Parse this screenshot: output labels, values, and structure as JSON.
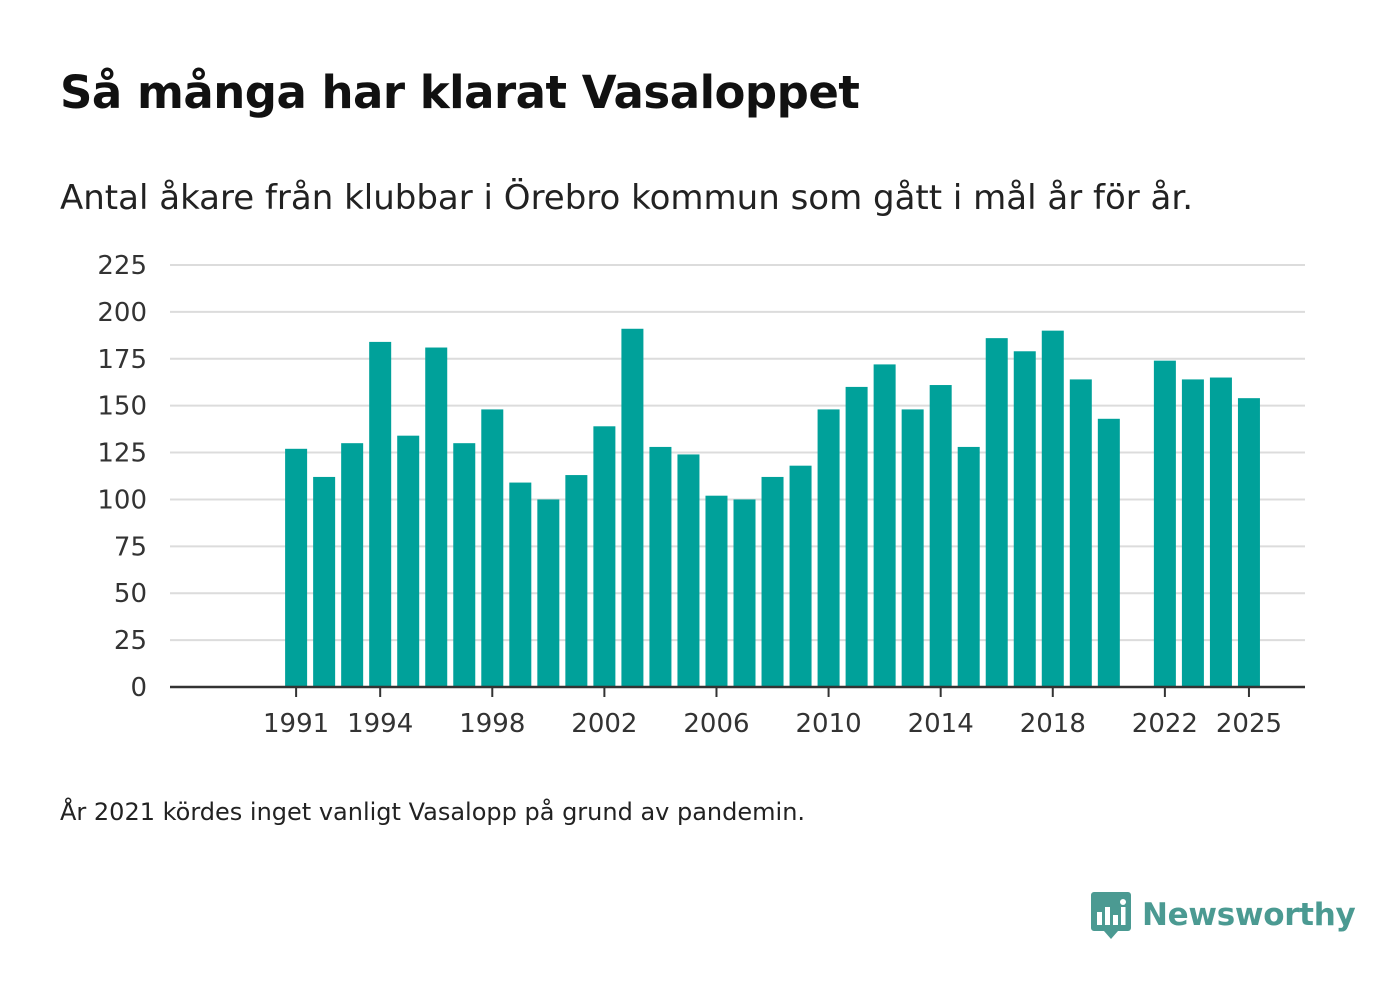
{
  "header": {
    "title": "Så många har klarat Vasaloppet",
    "subtitle": "Antal åkare från klubbar i Örebro kommun som gått i mål år för år."
  },
  "footer": {
    "note": "År 2021 kördes inget vanligt Vasalopp på grund av pandemin.",
    "brand": "Newsworthy"
  },
  "colors": {
    "bar": "#00a19a",
    "grid": "#dcdcdc",
    "axis": "#333333",
    "brand": "#4b9a92"
  },
  "chart_data": {
    "type": "bar",
    "title": "Så många har klarat Vasaloppet",
    "xlabel": "",
    "ylabel": "",
    "categories": [
      1991,
      1992,
      1993,
      1994,
      1995,
      1996,
      1997,
      1998,
      1999,
      2000,
      2001,
      2002,
      2003,
      2004,
      2005,
      2006,
      2007,
      2008,
      2009,
      2010,
      2011,
      2012,
      2013,
      2014,
      2015,
      2016,
      2017,
      2018,
      2019,
      2020,
      2021,
      2022,
      2023,
      2024,
      2025
    ],
    "values": [
      127,
      112,
      130,
      184,
      134,
      181,
      130,
      148,
      109,
      100,
      113,
      139,
      191,
      128,
      124,
      102,
      100,
      112,
      118,
      148,
      160,
      172,
      148,
      161,
      128,
      186,
      179,
      190,
      164,
      143,
      null,
      174,
      164,
      165,
      154
    ],
    "xticks": [
      "1991",
      "1994",
      "1998",
      "2002",
      "2006",
      "2010",
      "2014",
      "2018",
      "2022",
      "2025"
    ],
    "yticks": [
      "0",
      "25",
      "50",
      "75",
      "100",
      "125",
      "150",
      "175",
      "200",
      "225"
    ],
    "ylim": [
      0,
      225
    ],
    "xlim": [
      1986.5,
      2027
    ],
    "grid": true,
    "legend": "none"
  }
}
